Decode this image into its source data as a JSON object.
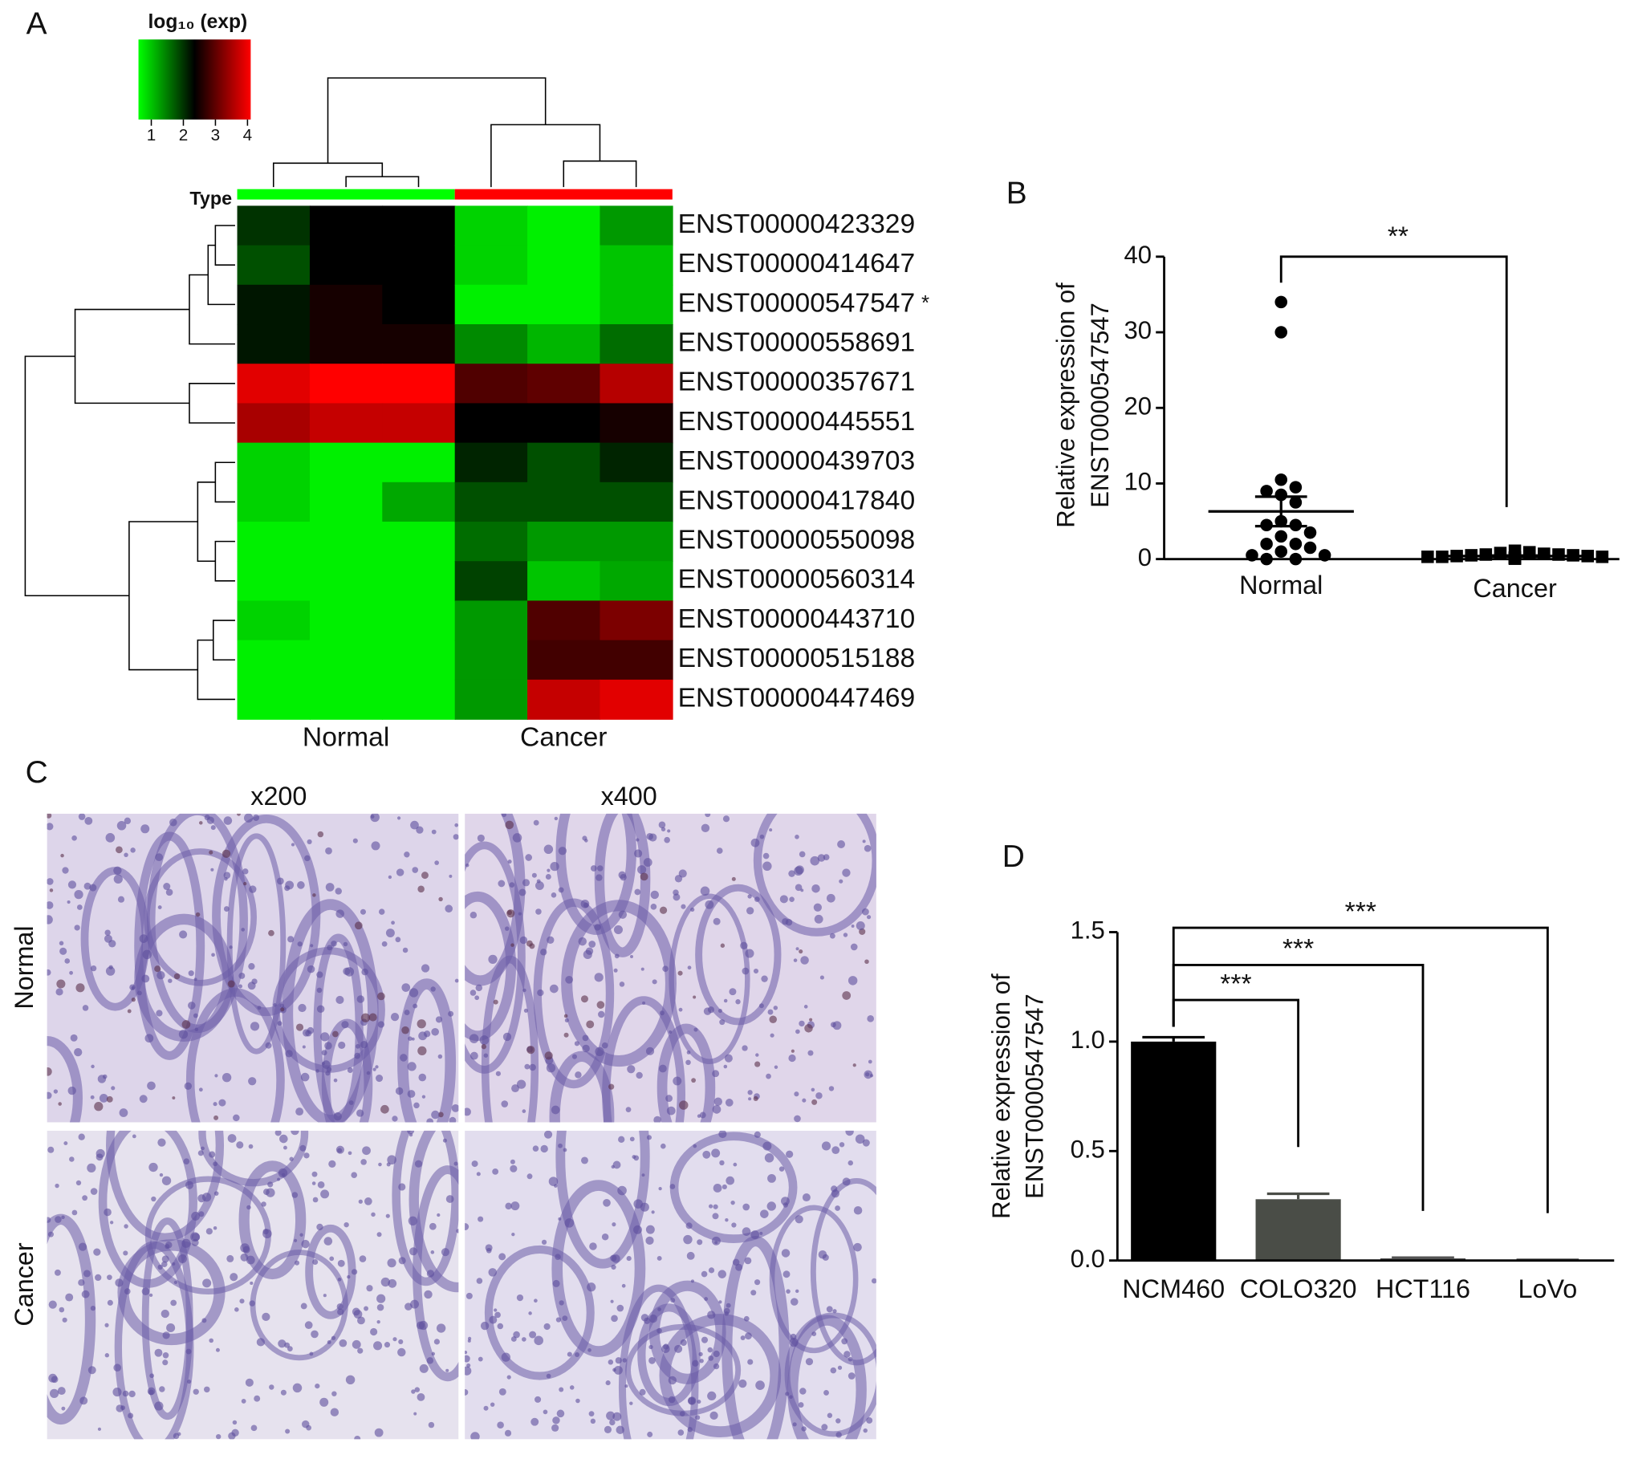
{
  "panel_labels": [
    "A",
    "B",
    "C",
    "D"
  ],
  "chart_data": [
    {
      "type": "heatmap",
      "group_label": "Type",
      "rows": [
        "ENST00000423329",
        "ENST00000414647",
        "ENST00000547547",
        "ENST00000558691",
        "ENST00000357671",
        "ENST00000445551",
        "ENST00000439703",
        "ENST00000417840",
        "ENST00000550098",
        "ENST00000560314",
        "ENST00000443710",
        "ENST00000515188",
        "ENST00000447469"
      ],
      "groups": [
        {
          "name": "Normal",
          "color": "#00ff00",
          "values": [
            [
              2.0,
              2.35,
              2.35
            ],
            [
              1.8,
              2.35,
              2.35
            ],
            [
              2.2,
              2.5,
              2.35
            ],
            [
              2.2,
              2.5,
              2.5
            ],
            [
              3.9,
              4.1,
              4.1
            ],
            [
              3.5,
              3.7,
              3.7
            ],
            [
              0.9,
              0.7,
              0.7
            ],
            [
              0.9,
              0.7,
              1.2
            ],
            [
              0.7,
              0.7,
              0.7
            ],
            [
              0.7,
              0.7,
              0.7
            ],
            [
              0.9,
              0.7,
              0.7
            ],
            [
              0.7,
              0.7,
              0.7
            ],
            [
              0.7,
              0.7,
              0.7
            ]
          ]
        },
        {
          "name": "Cancer",
          "color": "#ff0000",
          "values": [
            [
              0.9,
              0.7,
              1.3
            ],
            [
              0.9,
              0.7,
              1.0
            ],
            [
              0.7,
              0.7,
              1.0
            ],
            [
              1.4,
              1.1,
              1.6
            ],
            [
              2.9,
              3.0,
              3.6
            ],
            [
              2.35,
              2.35,
              2.5
            ],
            [
              2.1,
              1.8,
              2.1
            ],
            [
              1.8,
              1.8,
              1.8
            ],
            [
              1.6,
              1.3,
              1.3
            ],
            [
              1.9,
              1.0,
              1.2
            ],
            [
              1.3,
              2.9,
              3.2
            ],
            [
              1.3,
              2.8,
              2.8
            ],
            [
              1.3,
              3.7,
              3.9
            ]
          ]
        }
      ],
      "annotations": [
        {
          "row": "ENST00000547547",
          "text": "*"
        }
      ],
      "colorbar": {
        "title": "log₁₀ (exp)",
        "colors": [
          "#00ff00",
          "#000000",
          "#ff0000"
        ],
        "lim": [
          0.6,
          4.1
        ],
        "ticks": [
          1,
          2,
          3,
          4
        ]
      }
    },
    {
      "type": "scatter",
      "categories": [
        "Normal",
        "Cancer"
      ],
      "values": [
        [
          34,
          30,
          10.5,
          9.5,
          9,
          8.5,
          7.5,
          5,
          4.5,
          4.5,
          3.5,
          3,
          2,
          2,
          1.5,
          1,
          0.5,
          0.5,
          0,
          0
        ],
        [
          1.1,
          0.9,
          0.8,
          0.7,
          0.6,
          0.6,
          0.5,
          0.5,
          0.4,
          0.4,
          0.3,
          0.3,
          0.3,
          0.2,
          0.2,
          0.2,
          0.1,
          0.1,
          0.1,
          0.05
        ]
      ],
      "means": [
        6.3,
        0.4
      ],
      "sems": [
        1.95,
        0.07
      ],
      "markers": [
        "circle",
        "square"
      ],
      "color": "#000000",
      "ylabel": [
        "Relative expression of",
        "ENST0000547547"
      ],
      "ylim": [
        0,
        40
      ],
      "yticks": [
        0,
        10,
        20,
        30,
        40
      ],
      "brackets": [
        {
          "from": "Normal",
          "to": "Cancer",
          "label": "**",
          "y": 40
        }
      ]
    },
    {
      "type": "bar",
      "categories": [
        "NCM460",
        "COLO320",
        "HCT116",
        "LoVo"
      ],
      "values": [
        1.0,
        0.28,
        0.01,
        0.002
      ],
      "errors": [
        0.02,
        0.025,
        0.003,
        0.001
      ],
      "colors": [
        "#000000",
        "#4a4d47",
        "#555555",
        "#555555"
      ],
      "ylabel": [
        "Relative expression of",
        "ENST0000547547"
      ],
      "ylim": [
        0,
        1.5
      ],
      "yticks": [
        {
          "value": 0,
          "label": "0.0"
        },
        {
          "value": 0.5,
          "label": "0.5"
        },
        {
          "value": 1,
          "label": "1.0"
        },
        {
          "value": 1.5,
          "label": "1.5"
        }
      ],
      "brackets": [
        {
          "from": "NCM460",
          "to": "COLO320",
          "label": "***",
          "y": 1.19
        },
        {
          "from": "NCM460",
          "to": "HCT116",
          "label": "***",
          "y": 1.35
        },
        {
          "from": "NCM460",
          "to": "LoVo",
          "label": "***",
          "y": 1.52
        }
      ]
    }
  ],
  "micrographs": {
    "columns": [
      "x200",
      "x400"
    ],
    "rows": [
      "Normal",
      "Cancer"
    ]
  }
}
